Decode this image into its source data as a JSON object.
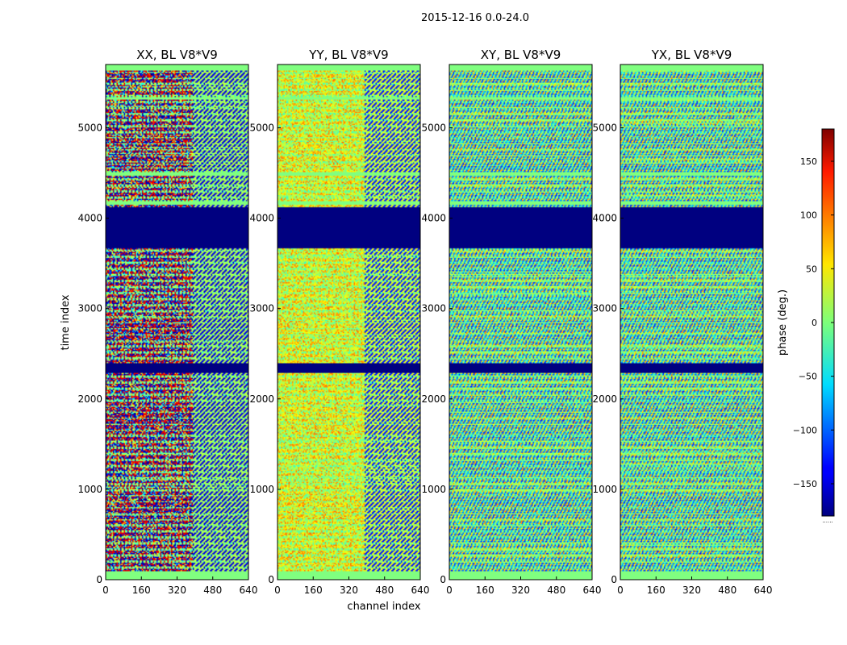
{
  "chart_data": {
    "type": "heatmap",
    "suptitle": "2015-12-16 0.0-24.0",
    "xlabel": "channel index",
    "ylabel": "time index",
    "xlim": [
      0,
      640
    ],
    "ylim": [
      0,
      5700
    ],
    "xticks": [
      0,
      160,
      320,
      480,
      640
    ],
    "yticks": [
      0,
      1000,
      2000,
      3000,
      4000,
      5000
    ],
    "panels": [
      {
        "title": "XX, BL V8*V9",
        "pattern": "xx"
      },
      {
        "title": "YY, BL V8*V9",
        "pattern": "yy"
      },
      {
        "title": "XY, BL V8*V9",
        "pattern": "xy"
      },
      {
        "title": "YX, BL V8*V9",
        "pattern": "yx"
      }
    ],
    "flag_bands_time": [
      [
        0,
        100
      ],
      [
        4150,
        4200
      ],
      [
        5320,
        5350
      ],
      [
        5640,
        5700
      ],
      [
        4480,
        4520
      ]
    ],
    "masked_bands_time": [
      [
        3670,
        4130
      ],
      [
        2300,
        2400
      ]
    ],
    "colorbar": {
      "label": "phase (deg.)",
      "range": [
        -180,
        180
      ],
      "ticks": [
        150,
        100,
        50,
        0,
        -50,
        -100,
        -150
      ],
      "tick_labels": [
        "150",
        "100",
        "50",
        "0",
        "−50",
        "−100",
        "−150"
      ],
      "colormap": "jet",
      "footnote": "......"
    }
  }
}
